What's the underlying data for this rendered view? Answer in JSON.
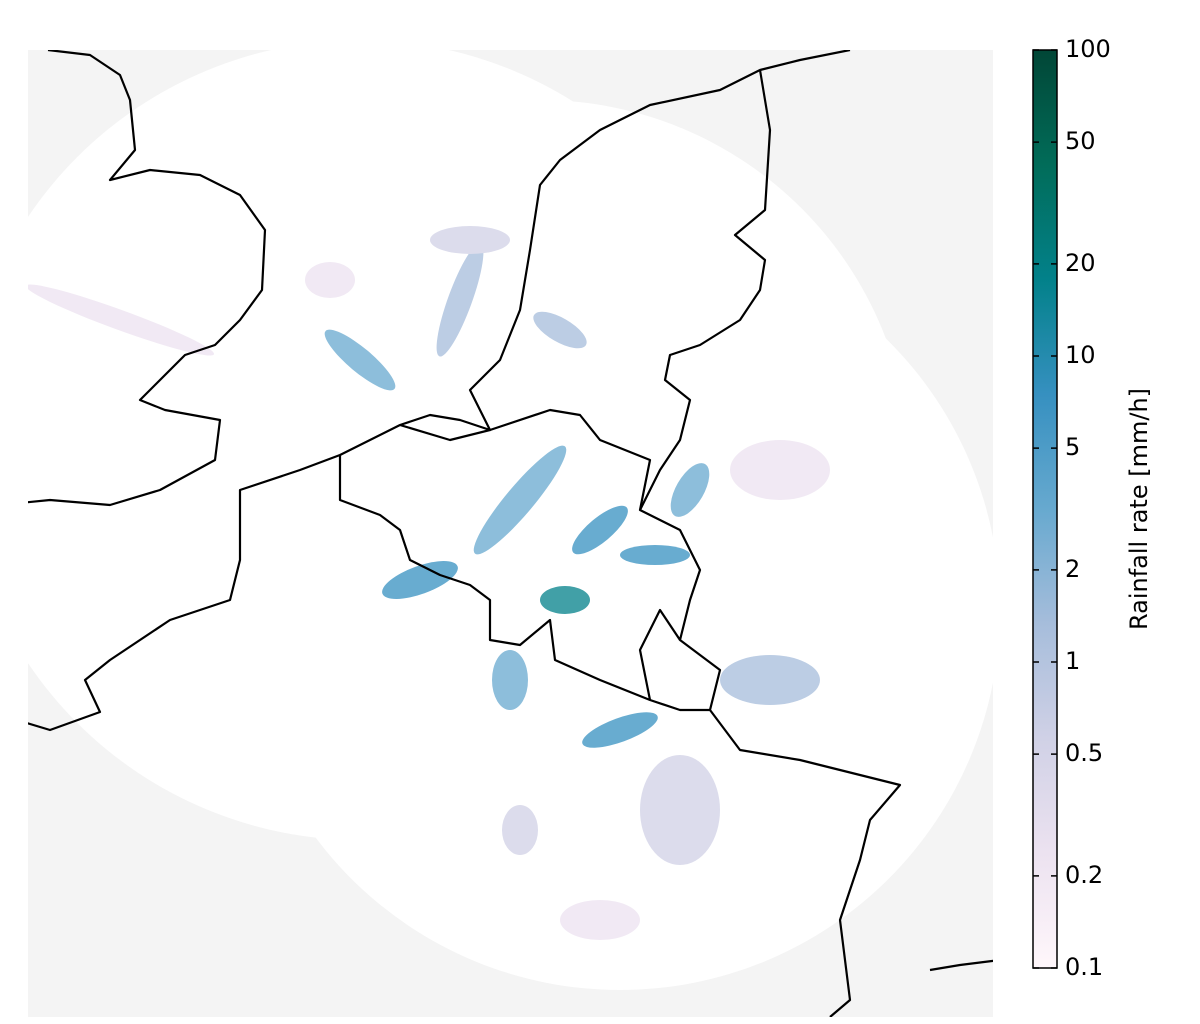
{
  "colorbar": {
    "label": "Rainfall rate [mm/h]",
    "lim": [
      0.1,
      100
    ],
    "scale": "log",
    "ticks": [
      0.1,
      0.2,
      0.5,
      1,
      2,
      5,
      10,
      20,
      50,
      100
    ],
    "colors": [
      "#fff7fb",
      "#ece2f0",
      "#d0d1e6",
      "#a6bddb",
      "#67a9cf",
      "#3690c0",
      "#02818a",
      "#016c59",
      "#014636"
    ]
  }
}
